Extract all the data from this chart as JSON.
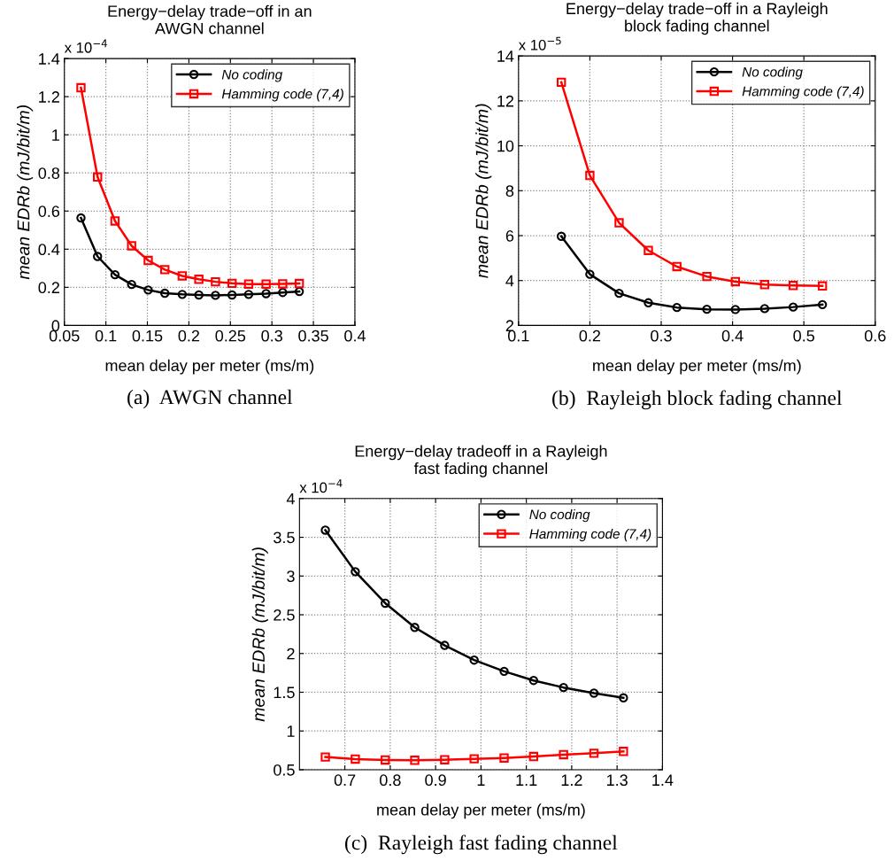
{
  "chart_data": [
    {
      "type": "line",
      "title": "Energy−delay trade−off in an\nAWGN channel",
      "xlabel": "mean delay per meter (ms/m)",
      "ylabel": "mean EDRb (mJ/bit/m)",
      "xlim": [
        0.05,
        0.4
      ],
      "xticks": [
        0.05,
        0.1,
        0.15,
        0.2,
        0.25,
        0.3,
        0.35,
        0.4
      ],
      "ylim": [
        0,
        1.4
      ],
      "yticks": [
        0,
        0.2,
        0.4,
        0.6,
        0.8,
        1,
        1.2,
        1.4
      ],
      "grid": true,
      "legend": "top right",
      "line_style": "solid",
      "annotations": [
        "x 10$^{−4}$",
        "(a)  AWGN channel"
      ],
      "series": [
        {
          "name": "No coding",
          "color": "#000000",
          "marker": "circle",
          "x": [
            0.07,
            0.09,
            0.111,
            0.131,
            0.151,
            0.171,
            0.192,
            0.212,
            0.232,
            0.252,
            0.272,
            0.293,
            0.313,
            0.333
          ],
          "values": [
            0.564,
            0.362,
            0.266,
            0.215,
            0.186,
            0.169,
            0.163,
            0.16,
            0.158,
            0.16,
            0.163,
            0.167,
            0.173,
            0.178
          ]
        },
        {
          "name": "Hamming code (7,4)",
          "color": "#ff0000",
          "marker": "square",
          "x": [
            0.07,
            0.09,
            0.111,
            0.131,
            0.151,
            0.171,
            0.192,
            0.212,
            0.232,
            0.252,
            0.272,
            0.293,
            0.313,
            0.333
          ],
          "values": [
            1.247,
            0.779,
            0.548,
            0.418,
            0.341,
            0.293,
            0.26,
            0.242,
            0.229,
            0.221,
            0.217,
            0.217,
            0.218,
            0.22
          ]
        }
      ]
    },
    {
      "type": "line",
      "title": "Energy−delay trade−off in a Rayleigh\nblock fading channel",
      "xlabel": "mean delay per meter (ms/m)",
      "ylabel": "mean EDRb (mJ/bit/m)",
      "xlim": [
        0.1,
        0.6
      ],
      "xticks": [
        0.1,
        0.2,
        0.3,
        0.4,
        0.5,
        0.6
      ],
      "ylim": [
        2,
        14
      ],
      "yticks": [
        2,
        4,
        6,
        8,
        10,
        12,
        14
      ],
      "grid": true,
      "legend": "top right",
      "line_style": "solid",
      "annotations": [
        "x 10$^{−5}$",
        "(b)  Rayleigh block fading channel"
      ],
      "series": [
        {
          "name": "No coding",
          "color": "#000000",
          "marker": "circle",
          "x": [
            0.16,
            0.2,
            0.241,
            0.282,
            0.322,
            0.364,
            0.404,
            0.445,
            0.485,
            0.526
          ],
          "values": [
            5.97,
            4.28,
            3.43,
            3.01,
            2.8,
            2.72,
            2.71,
            2.75,
            2.82,
            2.93
          ]
        },
        {
          "name": "Hamming code (7,4)",
          "color": "#ff0000",
          "marker": "square",
          "x": [
            0.16,
            0.2,
            0.241,
            0.282,
            0.322,
            0.364,
            0.404,
            0.445,
            0.485,
            0.526
          ],
          "values": [
            12.83,
            8.68,
            6.57,
            5.34,
            4.62,
            4.18,
            3.95,
            3.82,
            3.78,
            3.76
          ]
        }
      ]
    },
    {
      "type": "line",
      "title": "Energy−delay tradeoff in a Rayleigh\nfast fading channel",
      "xlabel": "mean delay per meter (ms/m)",
      "ylabel": "mean EDRb (mJ/bit/m)",
      "xlim": [
        0.6,
        1.4
      ],
      "xticks": [
        0.7,
        0.8,
        0.9,
        1,
        1.1,
        1.2,
        1.3,
        1.4
      ],
      "ylim": [
        0.5,
        4
      ],
      "yticks": [
        0.5,
        1,
        1.5,
        2,
        2.5,
        3,
        3.5,
        4
      ],
      "grid": true,
      "legend": "top right",
      "line_style": "solid",
      "annotations": [
        "x 10$^{−4}$",
        "(c)  Rayleigh fast fading channel"
      ],
      "series": [
        {
          "name": "No coding",
          "color": "#000000",
          "marker": "circle",
          "x": [
            0.657,
            0.723,
            0.789,
            0.854,
            0.92,
            0.985,
            1.051,
            1.116,
            1.182,
            1.249,
            1.314
          ],
          "values": [
            3.592,
            3.056,
            2.649,
            2.337,
            2.105,
            1.915,
            1.77,
            1.652,
            1.561,
            1.489,
            1.428
          ]
        },
        {
          "name": "Hamming code (7,4)",
          "color": "#ff0000",
          "marker": "square",
          "x": [
            0.657,
            0.723,
            0.789,
            0.854,
            0.92,
            0.985,
            1.051,
            1.116,
            1.182,
            1.249,
            1.314
          ],
          "values": [
            0.664,
            0.637,
            0.626,
            0.622,
            0.629,
            0.641,
            0.652,
            0.671,
            0.694,
            0.713,
            0.736
          ]
        }
      ]
    }
  ]
}
